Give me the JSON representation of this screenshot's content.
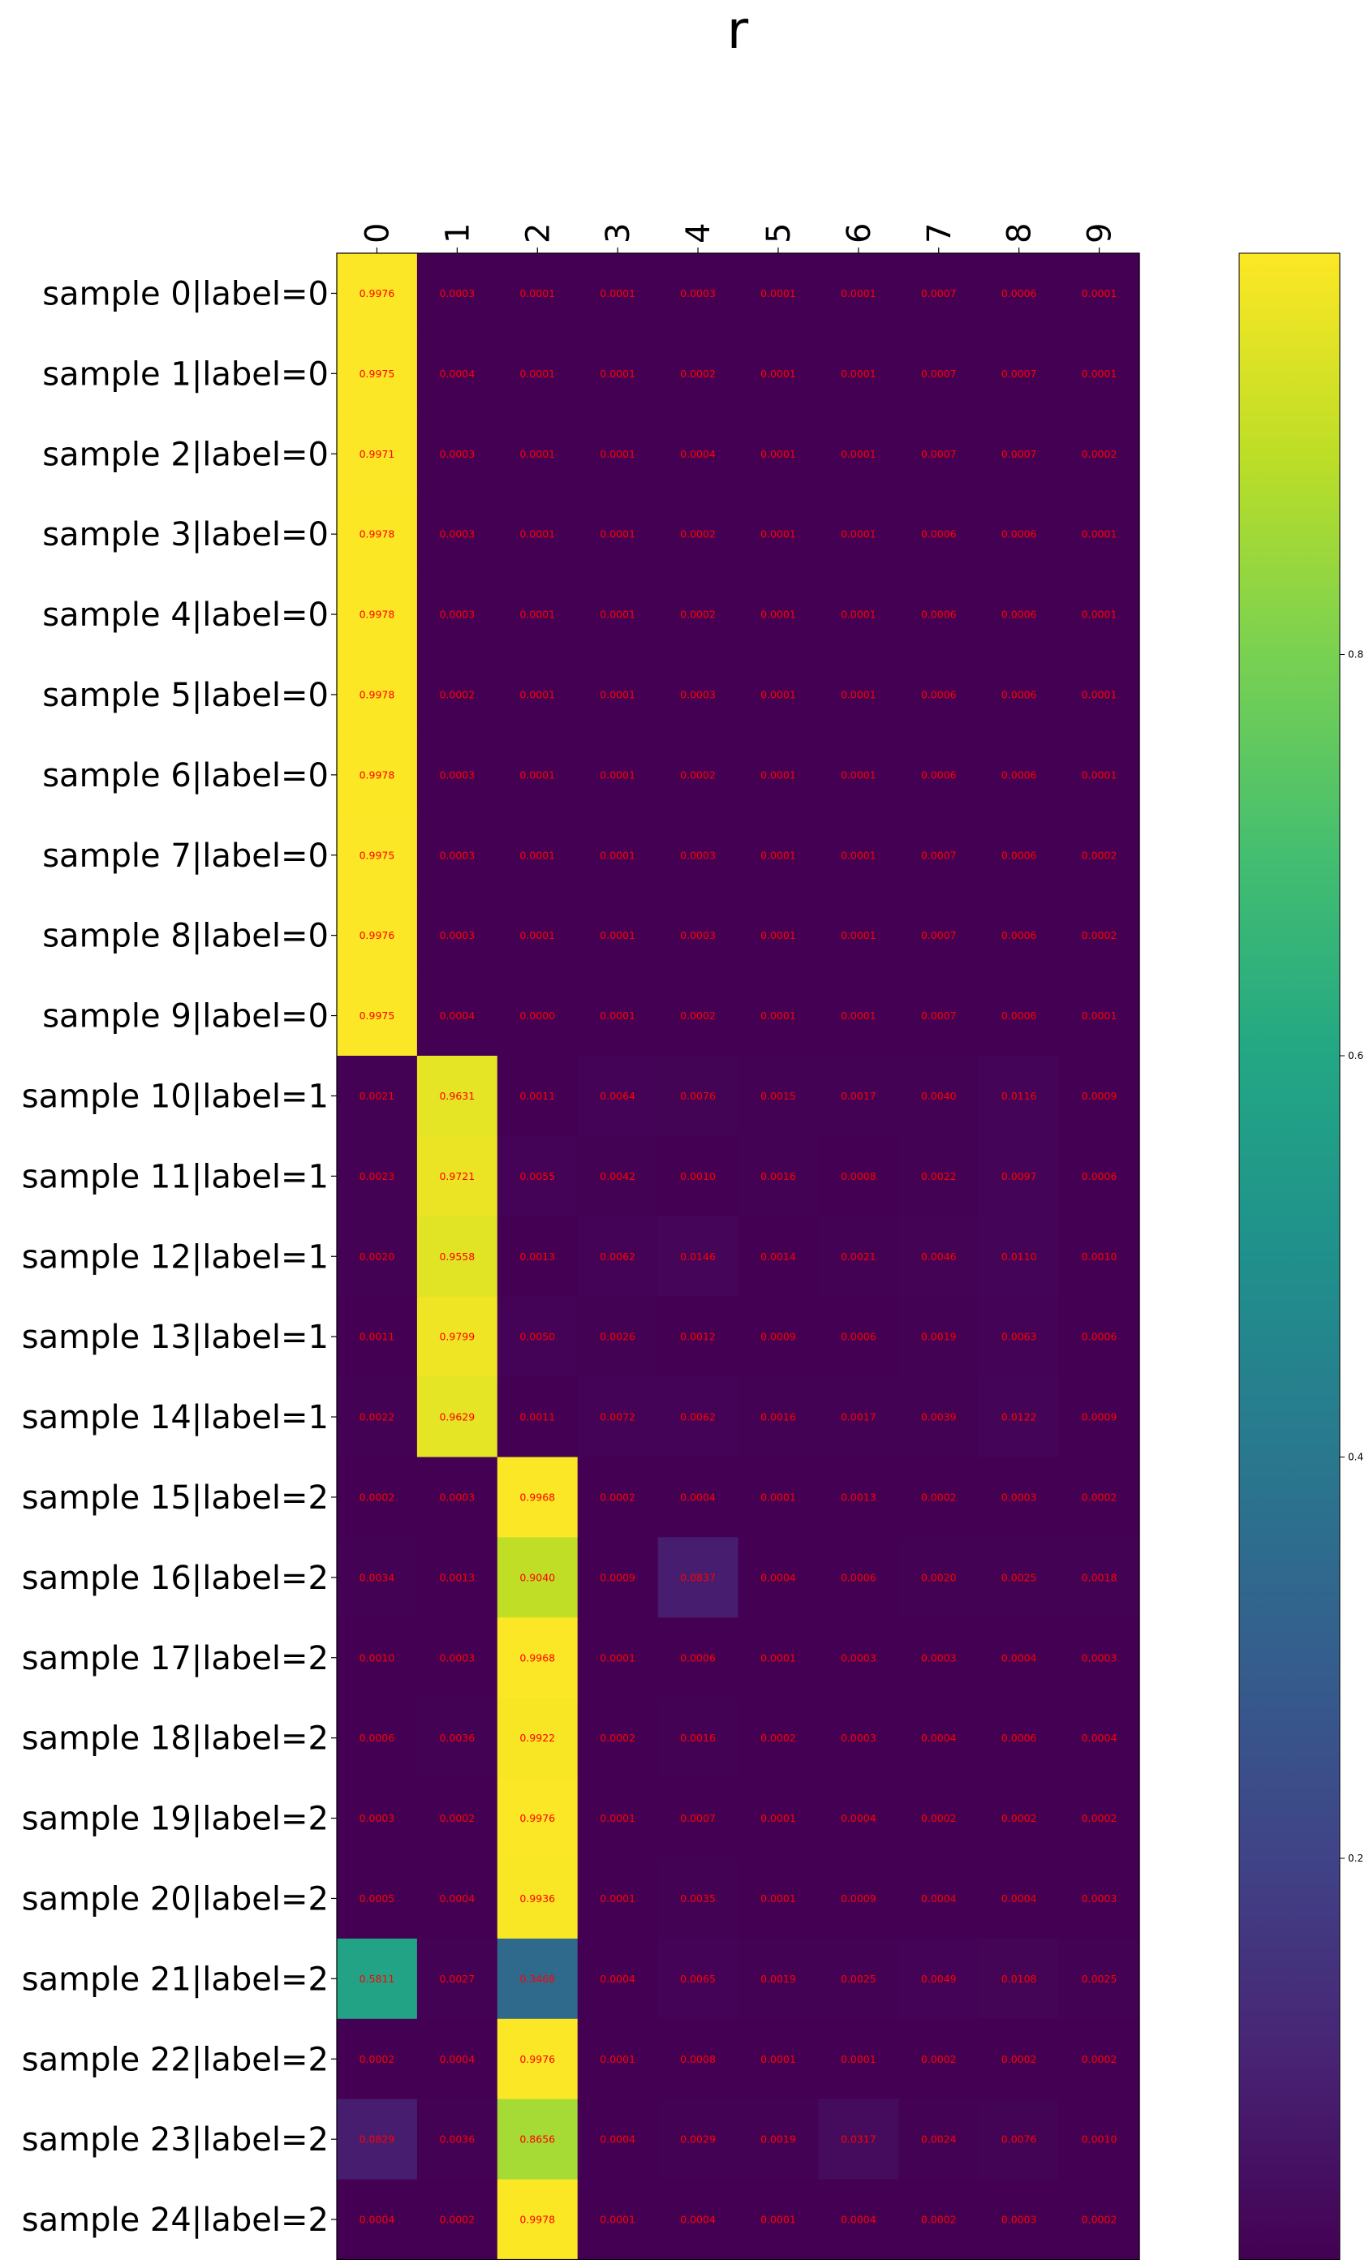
{
  "chart_data": {
    "type": "heatmap",
    "title": "r",
    "colormap": "viridis",
    "annotation_color": "#ff0000",
    "color_range": [
      0,
      1
    ],
    "colorbar": {
      "ticks": [
        0.2,
        0.4,
        0.6,
        0.8
      ],
      "tick_labels": [
        "0.2",
        "0.4",
        "0.6",
        "0.8"
      ]
    },
    "columns": [
      "0",
      "1",
      "2",
      "3",
      "4",
      "5",
      "6",
      "7",
      "8",
      "9"
    ],
    "rows": [
      "sample 0|label=0",
      "sample 1|label=0",
      "sample 2|label=0",
      "sample 3|label=0",
      "sample 4|label=0",
      "sample 5|label=0",
      "sample 6|label=0",
      "sample 7|label=0",
      "sample 8|label=0",
      "sample 9|label=0",
      "sample 10|label=1",
      "sample 11|label=1",
      "sample 12|label=1",
      "sample 13|label=1",
      "sample 14|label=1",
      "sample 15|label=2",
      "sample 16|label=2",
      "sample 17|label=2",
      "sample 18|label=2",
      "sample 19|label=2",
      "sample 20|label=2",
      "sample 21|label=2",
      "sample 22|label=2",
      "sample 23|label=2",
      "sample 24|label=2"
    ],
    "values": [
      [
        "0.9976",
        "0.0003",
        "0.0001",
        "0.0001",
        "0.0003",
        "0.0001",
        "0.0001",
        "0.0007",
        "0.0006",
        "0.0001"
      ],
      [
        "0.9975",
        "0.0004",
        "0.0001",
        "0.0001",
        "0.0002",
        "0.0001",
        "0.0001",
        "0.0007",
        "0.0007",
        "0.0001"
      ],
      [
        "0.9971",
        "0.0003",
        "0.0001",
        "0.0001",
        "0.0004",
        "0.0001",
        "0.0001",
        "0.0007",
        "0.0007",
        "0.0002"
      ],
      [
        "0.9978",
        "0.0003",
        "0.0001",
        "0.0001",
        "0.0002",
        "0.0001",
        "0.0001",
        "0.0006",
        "0.0006",
        "0.0001"
      ],
      [
        "0.9978",
        "0.0003",
        "0.0001",
        "0.0001",
        "0.0002",
        "0.0001",
        "0.0001",
        "0.0006",
        "0.0006",
        "0.0001"
      ],
      [
        "0.9978",
        "0.0002",
        "0.0001",
        "0.0001",
        "0.0003",
        "0.0001",
        "0.0001",
        "0.0006",
        "0.0006",
        "0.0001"
      ],
      [
        "0.9978",
        "0.0003",
        "0.0001",
        "0.0001",
        "0.0002",
        "0.0001",
        "0.0001",
        "0.0006",
        "0.0006",
        "0.0001"
      ],
      [
        "0.9975",
        "0.0003",
        "0.0001",
        "0.0001",
        "0.0003",
        "0.0001",
        "0.0001",
        "0.0007",
        "0.0006",
        "0.0002"
      ],
      [
        "0.9976",
        "0.0003",
        "0.0001",
        "0.0001",
        "0.0003",
        "0.0001",
        "0.0001",
        "0.0007",
        "0.0006",
        "0.0002"
      ],
      [
        "0.9975",
        "0.0004",
        "0.0000",
        "0.0001",
        "0.0002",
        "0.0001",
        "0.0001",
        "0.0007",
        "0.0006",
        "0.0001"
      ],
      [
        "0.0021",
        "0.9631",
        "0.0011",
        "0.0064",
        "0.0076",
        "0.0015",
        "0.0017",
        "0.0040",
        "0.0116",
        "0.0009"
      ],
      [
        "0.0023",
        "0.9721",
        "0.0055",
        "0.0042",
        "0.0010",
        "0.0016",
        "0.0008",
        "0.0022",
        "0.0097",
        "0.0006"
      ],
      [
        "0.0020",
        "0.9558",
        "0.0013",
        "0.0062",
        "0.0146",
        "0.0014",
        "0.0021",
        "0.0046",
        "0.0110",
        "0.0010"
      ],
      [
        "0.0011",
        "0.9799",
        "0.0050",
        "0.0026",
        "0.0012",
        "0.0009",
        "0.0006",
        "0.0019",
        "0.0063",
        "0.0006"
      ],
      [
        "0.0022",
        "0.9629",
        "0.0011",
        "0.0072",
        "0.0062",
        "0.0016",
        "0.0017",
        "0.0039",
        "0.0122",
        "0.0009"
      ],
      [
        "0.0002",
        "0.0003",
        "0.9968",
        "0.0002",
        "0.0004",
        "0.0001",
        "0.0013",
        "0.0002",
        "0.0003",
        "0.0002"
      ],
      [
        "0.0034",
        "0.0013",
        "0.9040",
        "0.0009",
        "0.0837",
        "0.0004",
        "0.0006",
        "0.0020",
        "0.0025",
        "0.0018"
      ],
      [
        "0.0010",
        "0.0003",
        "0.9968",
        "0.0001",
        "0.0006",
        "0.0001",
        "0.0003",
        "0.0003",
        "0.0004",
        "0.0003"
      ],
      [
        "0.0006",
        "0.0036",
        "0.9922",
        "0.0002",
        "0.0016",
        "0.0002",
        "0.0003",
        "0.0004",
        "0.0006",
        "0.0004"
      ],
      [
        "0.0003",
        "0.0002",
        "0.9976",
        "0.0001",
        "0.0007",
        "0.0001",
        "0.0004",
        "0.0002",
        "0.0002",
        "0.0002"
      ],
      [
        "0.0005",
        "0.0004",
        "0.9936",
        "0.0001",
        "0.0035",
        "0.0001",
        "0.0009",
        "0.0004",
        "0.0004",
        "0.0003"
      ],
      [
        "0.5811",
        "0.0027",
        "0.3468",
        "0.0004",
        "0.0065",
        "0.0019",
        "0.0025",
        "0.0049",
        "0.0108",
        "0.0025"
      ],
      [
        "0.0002",
        "0.0004",
        "0.9976",
        "0.0001",
        "0.0008",
        "0.0001",
        "0.0001",
        "0.0002",
        "0.0002",
        "0.0002"
      ],
      [
        "0.0829",
        "0.0036",
        "0.8656",
        "0.0004",
        "0.0029",
        "0.0019",
        "0.0317",
        "0.0024",
        "0.0076",
        "0.0010"
      ],
      [
        "0.0004",
        "0.0002",
        "0.9978",
        "0.0001",
        "0.0004",
        "0.0001",
        "0.0004",
        "0.0002",
        "0.0003",
        "0.0002"
      ]
    ]
  }
}
